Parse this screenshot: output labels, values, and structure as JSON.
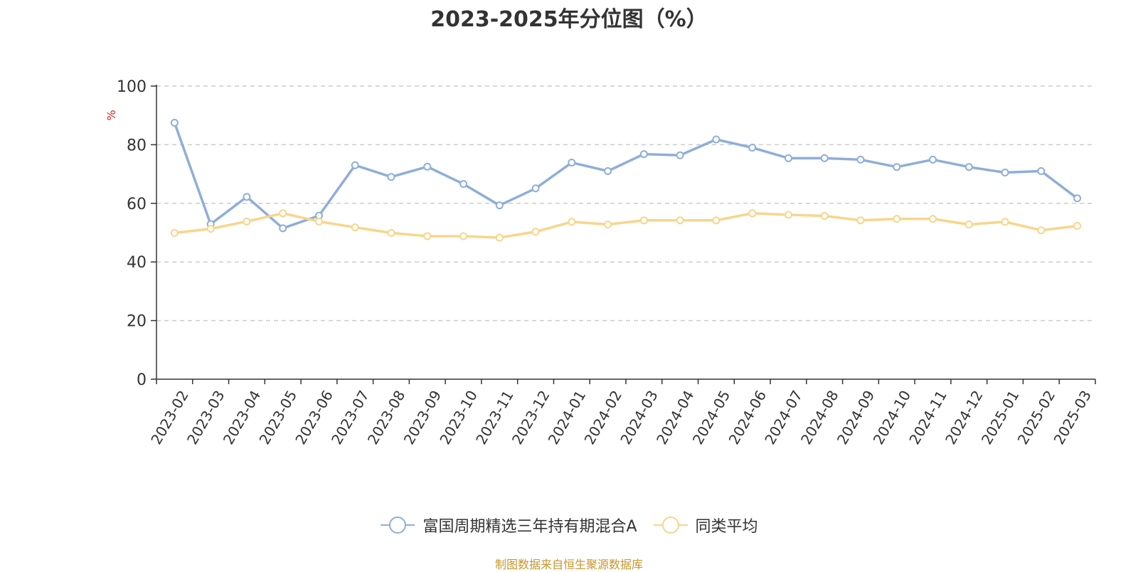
{
  "chart_data": {
    "type": "line",
    "title": "2023-2025年分位图（%）",
    "ylabel": "%",
    "ylim": [
      0,
      100
    ],
    "yticks": [
      0,
      20,
      40,
      60,
      80,
      100
    ],
    "grid": true,
    "legend_position": "bottom-center",
    "categories": [
      "2023-02",
      "2023-03",
      "2023-04",
      "2023-05",
      "2023-06",
      "2023-07",
      "2023-08",
      "2023-09",
      "2023-10",
      "2023-11",
      "2023-12",
      "2024-01",
      "2024-02",
      "2024-03",
      "2024-04",
      "2024-05",
      "2024-06",
      "2024-07",
      "2024-08",
      "2024-09",
      "2024-10",
      "2024-11",
      "2024-12",
      "2025-01",
      "2025-02",
      "2025-03"
    ],
    "series": [
      {
        "name": "富国周期精选三年持有期混合A",
        "color": "#8eaed9",
        "values": [
          87.5,
          52.9,
          62.2,
          51.5,
          55.8,
          73.0,
          69.0,
          72.5,
          66.6,
          59.3,
          65.1,
          73.9,
          71.0,
          76.8,
          76.4,
          81.8,
          79.0,
          75.4,
          75.4,
          74.9,
          72.4,
          74.9,
          72.4,
          70.5,
          71.0,
          61.7
        ]
      },
      {
        "name": "同类平均",
        "color": "#f9d58b",
        "values": [
          49.9,
          51.3,
          53.8,
          56.6,
          53.8,
          51.8,
          49.9,
          48.8,
          48.8,
          48.3,
          50.3,
          53.7,
          52.8,
          54.2,
          54.2,
          54.2,
          56.6,
          56.1,
          55.7,
          54.2,
          54.7,
          54.7,
          52.8,
          53.7,
          50.8,
          52.3
        ]
      }
    ]
  },
  "source_note": "制图数据来自恒生聚源数据库"
}
